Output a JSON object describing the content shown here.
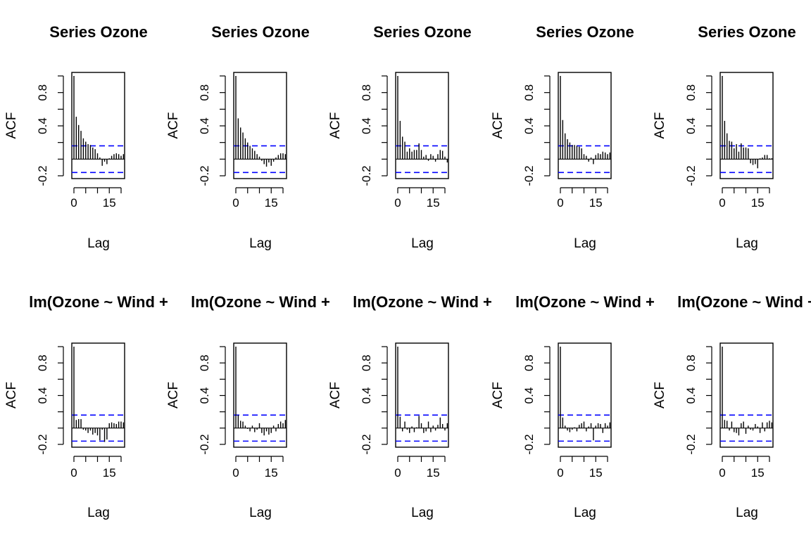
{
  "chart_data": [
    {
      "type": "bar",
      "title": "Series  Ozone",
      "xlabel": "Lag",
      "ylabel": "ACF",
      "xticks": [
        "0",
        "15"
      ],
      "yticks": [
        "-0.2",
        "0.4",
        "0.8"
      ],
      "ylim": [
        -0.2,
        1.0
      ],
      "xlim": [
        0,
        21
      ],
      "conf_limit": 0.16,
      "lags": [
        0,
        1,
        2,
        3,
        4,
        5,
        6,
        7,
        8,
        9,
        10,
        11,
        12,
        13,
        14,
        15,
        16,
        17,
        18,
        19,
        20,
        21
      ],
      "values": [
        1.0,
        0.51,
        0.41,
        0.34,
        0.25,
        0.21,
        0.18,
        0.17,
        0.14,
        0.12,
        0.07,
        0.02,
        -0.08,
        -0.03,
        -0.06,
        0.01,
        0.04,
        0.06,
        0.07,
        0.06,
        0.04,
        0.06
      ]
    },
    {
      "type": "bar",
      "title": "Series  Ozone",
      "xlabel": "Lag",
      "ylabel": "ACF",
      "xticks": [
        "0",
        "15"
      ],
      "yticks": [
        "-0.2",
        "0.4",
        "0.8"
      ],
      "ylim": [
        -0.2,
        1.0
      ],
      "xlim": [
        0,
        21
      ],
      "conf_limit": 0.16,
      "lags": [
        0,
        1,
        2,
        3,
        4,
        5,
        6,
        7,
        8,
        9,
        10,
        11,
        12,
        13,
        14,
        15,
        16,
        17,
        18,
        19,
        20,
        21
      ],
      "values": [
        1.0,
        0.49,
        0.38,
        0.32,
        0.25,
        0.2,
        0.16,
        0.13,
        0.1,
        0.06,
        0.03,
        -0.02,
        -0.06,
        -0.09,
        -0.04,
        -0.08,
        -0.03,
        0.02,
        0.05,
        0.07,
        0.07,
        0.06
      ]
    },
    {
      "type": "bar",
      "title": "Series  Ozone",
      "xlabel": "Lag",
      "ylabel": "ACF",
      "xticks": [
        "0",
        "15"
      ],
      "yticks": [
        "-0.2",
        "0.4",
        "0.8"
      ],
      "ylim": [
        -0.2,
        1.0
      ],
      "xlim": [
        0,
        21
      ],
      "conf_limit": 0.16,
      "lags": [
        0,
        1,
        2,
        3,
        4,
        5,
        6,
        7,
        8,
        9,
        10,
        11,
        12,
        13,
        14,
        15,
        16,
        17,
        18,
        19,
        20,
        21
      ],
      "values": [
        1.0,
        0.46,
        0.27,
        0.21,
        0.09,
        0.13,
        0.09,
        0.11,
        0.11,
        0.19,
        0.11,
        0.03,
        0.05,
        -0.02,
        0.06,
        0.04,
        -0.03,
        0.06,
        0.11,
        0.1,
        0.03,
        -0.04
      ]
    },
    {
      "type": "bar",
      "title": "Series  Ozone",
      "xlabel": "Lag",
      "ylabel": "ACF",
      "xticks": [
        "0",
        "15"
      ],
      "yticks": [
        "-0.2",
        "0.4",
        "0.8"
      ],
      "ylim": [
        -0.2,
        1.0
      ],
      "xlim": [
        0,
        21
      ],
      "conf_limit": 0.16,
      "lags": [
        0,
        1,
        2,
        3,
        4,
        5,
        6,
        7,
        8,
        9,
        10,
        11,
        12,
        13,
        14,
        15,
        16,
        17,
        18,
        19,
        20,
        21
      ],
      "values": [
        1.0,
        0.47,
        0.31,
        0.24,
        0.2,
        0.17,
        0.17,
        0.16,
        0.15,
        0.13,
        0.06,
        0.04,
        -0.03,
        0.02,
        -0.06,
        0.05,
        0.07,
        0.06,
        0.09,
        0.08,
        0.06,
        0.08
      ]
    },
    {
      "type": "bar",
      "title": "Series  Ozone",
      "xlabel": "Lag",
      "ylabel": "ACF",
      "xticks": [
        "0",
        "15"
      ],
      "yticks": [
        "-0.2",
        "0.4",
        "0.8"
      ],
      "ylim": [
        -0.2,
        1.0
      ],
      "xlim": [
        0,
        21
      ],
      "conf_limit": 0.16,
      "lags": [
        0,
        1,
        2,
        3,
        4,
        5,
        6,
        7,
        8,
        9,
        10,
        11,
        12,
        13,
        14,
        15,
        16,
        17,
        18,
        19,
        20,
        21
      ],
      "values": [
        1.0,
        0.46,
        0.31,
        0.22,
        0.21,
        0.13,
        0.18,
        0.09,
        0.19,
        0.14,
        0.14,
        0.13,
        -0.05,
        -0.07,
        -0.06,
        -0.11,
        0.01,
        0.02,
        0.05,
        0.05,
        0.01,
        0.01
      ]
    },
    {
      "type": "bar",
      "title": "lm(Ozone ~ Wind +",
      "xlabel": "Lag",
      "ylabel": "ACF",
      "xticks": [
        "0",
        "15"
      ],
      "yticks": [
        "-0.2",
        "0.4",
        "0.8"
      ],
      "ylim": [
        -0.2,
        1.0
      ],
      "xlim": [
        0,
        21
      ],
      "conf_limit": 0.16,
      "lags": [
        0,
        1,
        2,
        3,
        4,
        5,
        6,
        7,
        8,
        9,
        10,
        11,
        12,
        13,
        14,
        15,
        16,
        17,
        18,
        19,
        20,
        21
      ],
      "values": [
        1.0,
        0.1,
        0.11,
        0.11,
        -0.02,
        -0.03,
        -0.06,
        -0.03,
        -0.08,
        -0.06,
        -0.09,
        -0.15,
        -0.02,
        -0.17,
        -0.14,
        0.06,
        0.07,
        0.06,
        0.05,
        0.08,
        0.08,
        0.07
      ]
    },
    {
      "type": "bar",
      "title": "lm(Ozone ~ Wind +",
      "xlabel": "Lag",
      "ylabel": "ACF",
      "xticks": [
        "0",
        "15"
      ],
      "yticks": [
        "-0.2",
        "0.4",
        "0.8"
      ],
      "ylim": [
        -0.2,
        1.0
      ],
      "xlim": [
        0,
        21
      ],
      "conf_limit": 0.16,
      "lags": [
        0,
        1,
        2,
        3,
        4,
        5,
        6,
        7,
        8,
        9,
        10,
        11,
        12,
        13,
        14,
        15,
        16,
        17,
        18,
        19,
        20,
        21
      ],
      "values": [
        1.0,
        0.16,
        0.09,
        0.08,
        0.03,
        -0.01,
        -0.04,
        0.03,
        -0.05,
        -0.02,
        0.06,
        -0.06,
        -0.09,
        -0.04,
        -0.08,
        -0.06,
        0.03,
        -0.04,
        0.05,
        0.08,
        0.06,
        0.1
      ]
    },
    {
      "type": "bar",
      "title": "lm(Ozone ~ Wind +",
      "xlabel": "Lag",
      "ylabel": "ACF",
      "xticks": [
        "0",
        "15"
      ],
      "yticks": [
        "-0.2",
        "0.4",
        "0.8"
      ],
      "ylim": [
        -0.2,
        1.0
      ],
      "xlim": [
        0,
        21
      ],
      "conf_limit": 0.16,
      "lags": [
        0,
        1,
        2,
        3,
        4,
        5,
        6,
        7,
        8,
        9,
        10,
        11,
        12,
        13,
        14,
        15,
        16,
        17,
        18,
        19,
        20,
        21
      ],
      "values": [
        1.0,
        0.14,
        -0.04,
        0.08,
        -0.02,
        -0.06,
        0.02,
        -0.05,
        0.01,
        0.15,
        0.06,
        -0.06,
        -0.04,
        0.08,
        -0.05,
        0.03,
        -0.03,
        0.04,
        0.13,
        0.05,
        -0.03,
        0.06
      ]
    },
    {
      "type": "bar",
      "title": "lm(Ozone ~ Wind +",
      "xlabel": "Lag",
      "ylabel": "ACF",
      "xticks": [
        "0",
        "15"
      ],
      "yticks": [
        "-0.2",
        "0.4",
        "0.8"
      ],
      "ylim": [
        -0.2,
        1.0
      ],
      "xlim": [
        0,
        21
      ],
      "conf_limit": 0.16,
      "lags": [
        0,
        1,
        2,
        3,
        4,
        5,
        6,
        7,
        8,
        9,
        10,
        11,
        12,
        13,
        14,
        15,
        16,
        17,
        18,
        19,
        20,
        21
      ],
      "values": [
        1.0,
        0.13,
        0.03,
        -0.03,
        -0.05,
        -0.02,
        0.01,
        -0.04,
        0.04,
        0.06,
        0.08,
        -0.04,
        0.02,
        0.06,
        -0.15,
        0.03,
        0.06,
        0.05,
        -0.06,
        0.06,
        0.03,
        0.07
      ]
    },
    {
      "type": "bar",
      "title": "lm(Ozone ~ Wind +",
      "xlabel": "Lag",
      "ylabel": "ACF",
      "xticks": [
        "0",
        "15"
      ],
      "yticks": [
        "-0.2",
        "0.4",
        "0.8"
      ],
      "ylim": [
        -0.2,
        1.0
      ],
      "xlim": [
        0,
        21
      ],
      "conf_limit": 0.16,
      "lags": [
        0,
        1,
        2,
        3,
        4,
        5,
        6,
        7,
        8,
        9,
        10,
        11,
        12,
        13,
        14,
        15,
        16,
        17,
        18,
        19,
        20,
        21
      ],
      "values": [
        1.0,
        0.1,
        0.09,
        -0.03,
        0.08,
        -0.05,
        -0.06,
        -0.09,
        0.06,
        0.08,
        -0.07,
        0.03,
        -0.02,
        -0.03,
        0.05,
        0.02,
        -0.06,
        0.07,
        -0.04,
        0.07,
        0.09,
        0.07
      ]
    }
  ]
}
